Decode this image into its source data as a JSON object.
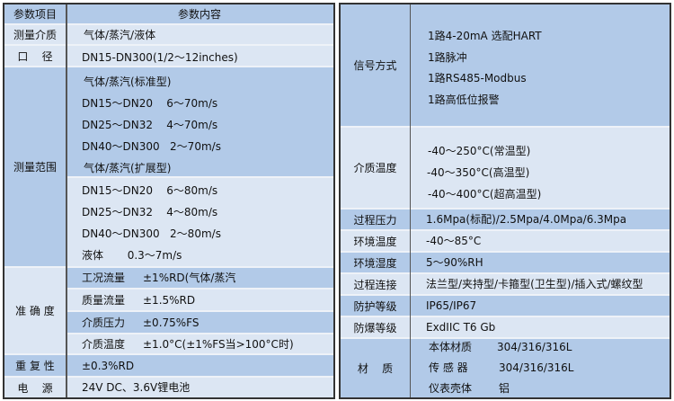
{
  "left_table": {
    "header": {
      "item": "参数项目",
      "content": "参数内容"
    },
    "medium": {
      "label": "测量介质",
      "value": "气体/蒸汽/液体"
    },
    "diameter": {
      "label": "口    径",
      "value": "DN15-DN300(1/2～12inches)"
    },
    "range": {
      "label": "测量范围",
      "lines": [
        "气体/蒸汽(标准型)",
        "DN15～DN20    6～70m/s",
        "DN25～DN32    4～70m/s",
        "DN40～DN300   2～70m/s",
        "气体/蒸汽(扩展型)",
        "DN15～DN20    6～80m/s",
        "DN25～DN32    4～80m/s",
        "DN40～DN300   2～80m/s",
        "液体       0.3～7m/s"
      ]
    },
    "accuracy": {
      "label": "准 确 度",
      "rows": [
        {
          "name": "工况流量",
          "value": "±1%RD(气体/蒸汽"
        },
        {
          "name": "质量流量",
          "value": "±1.5%RD"
        },
        {
          "name": "介质压力",
          "value": "±0.75%FS"
        },
        {
          "name": "介质温度",
          "value": "±1.0°C(±1%FS当>100°C时)"
        }
      ]
    },
    "repeatability": {
      "label": "重 复 性",
      "value": "±0.3%RD"
    },
    "power": {
      "label": "电    源",
      "value": "24V DC、3.6V锂电池"
    }
  },
  "right_table": {
    "signal": {
      "label": "信号方式",
      "lines": [
        "1路4-20mA 选配HART",
        "1路脉冲",
        "1路RS485-Modbus",
        "1路高低位报警"
      ]
    },
    "medium_temp": {
      "label": "介质温度",
      "lines": [
        "-40～250°C(常温型)",
        "-40～350°C(高温型)",
        "-40～400°C(超高温型)"
      ]
    },
    "process_pressure": {
      "label": "过程压力",
      "value": "1.6Mpa(标配)/2.5Mpa/4.0Mpa/6.3Mpa"
    },
    "ambient_temp": {
      "label": "环境温度",
      "value": "-40～85°C"
    },
    "ambient_humidity": {
      "label": "环境湿度",
      "value": "5～90%RH"
    },
    "connection": {
      "label": "过程连接",
      "value": "法兰型/夹持型/卡箍型(卫生型)/插入式/螺纹型"
    },
    "protection": {
      "label": "防护等级",
      "value": "IP65/IP67"
    },
    "explosion": {
      "label": "防爆等级",
      "value": "ExdIIC T6 Gb"
    },
    "material": {
      "label": "材    质",
      "rows": [
        {
          "name": "本体材质",
          "value": "304/316/316L"
        },
        {
          "name": "传 感 器",
          "value": "304/316/316L"
        },
        {
          "name": "仪表壳体",
          "value": "铝"
        }
      ]
    }
  },
  "colors": {
    "dark_row": "#b2cae8",
    "light_row": "#dce6f3",
    "border": "#333333"
  }
}
